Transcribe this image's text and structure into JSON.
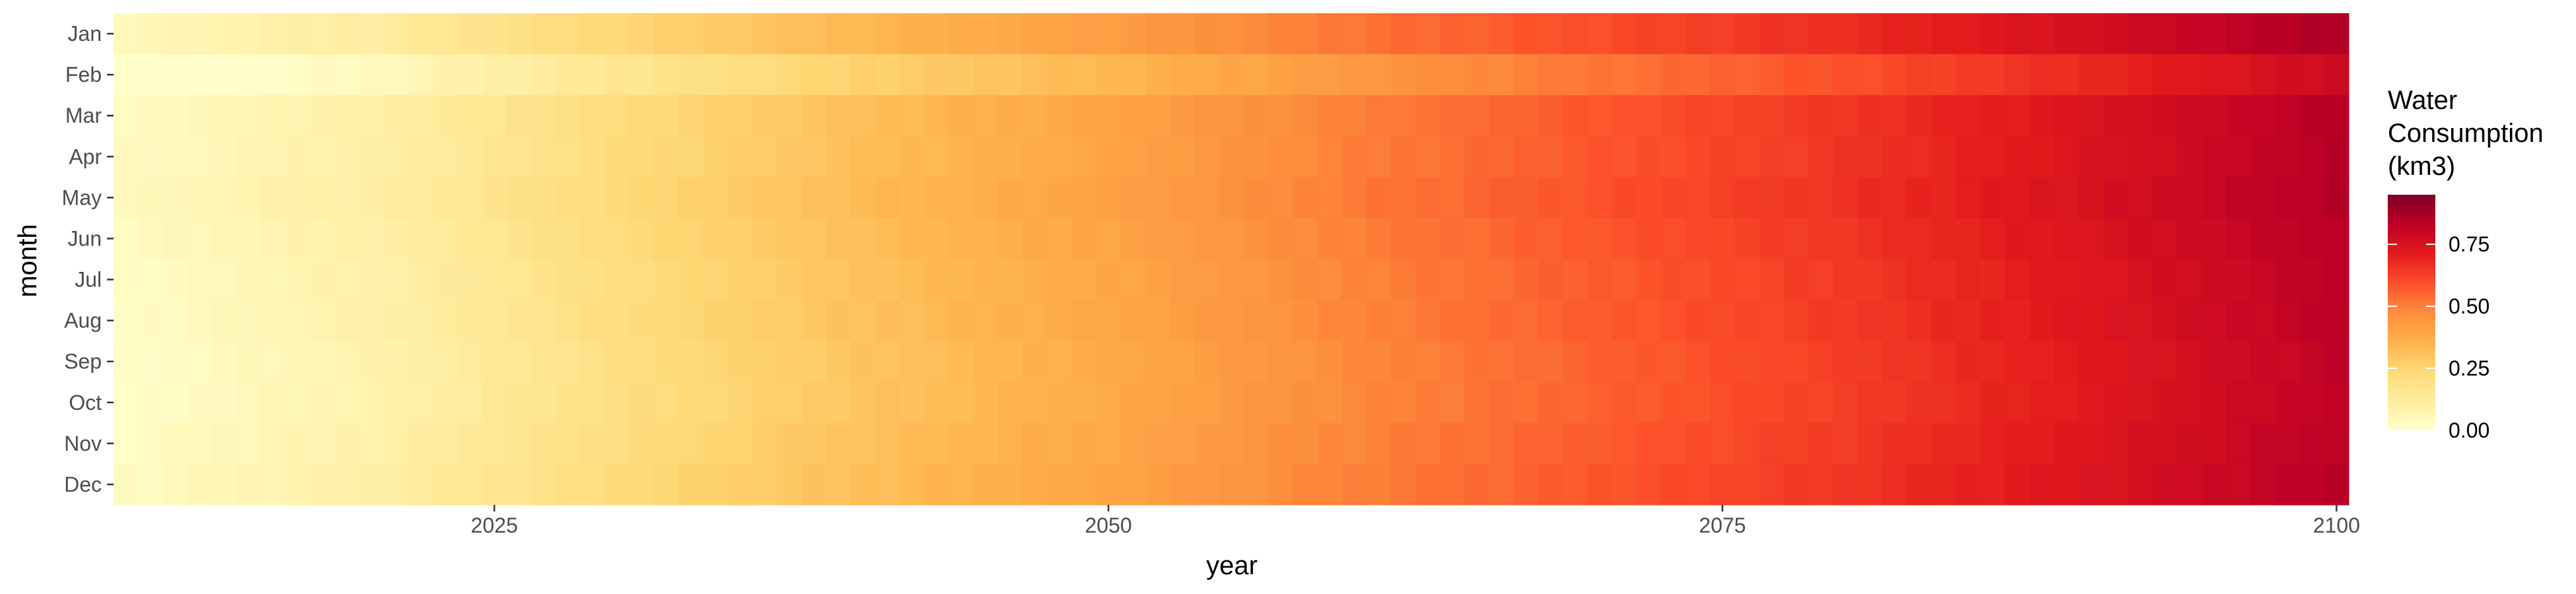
{
  "chart_data": {
    "type": "heatmap",
    "title": "",
    "xlabel": "year",
    "ylabel": "month",
    "x_start": 2010,
    "x_end": 2100,
    "x_ticks": [
      2025,
      2050,
      2075,
      2100
    ],
    "x_tick_labels": [
      "2025",
      "2050",
      "2075",
      "2100"
    ],
    "xlim": [
      2009.5,
      2100.5
    ],
    "months": [
      "Jan",
      "Feb",
      "Mar",
      "Apr",
      "May",
      "Jun",
      "Jul",
      "Aug",
      "Sep",
      "Oct",
      "Nov",
      "Dec"
    ],
    "grid": false,
    "value_model": {
      "description_points_year": [
        2010,
        2020,
        2030,
        2040,
        2050,
        2060,
        2070,
        2080,
        2090,
        2100
      ],
      "description_points_value": [
        0.03,
        0.1,
        0.22,
        0.32,
        0.4,
        0.5,
        0.58,
        0.65,
        0.74,
        0.84
      ],
      "month_offsets": [
        0.02,
        -0.06,
        0.0,
        0.0,
        0.01,
        0.0,
        -0.01,
        -0.01,
        -0.02,
        -0.02,
        -0.01,
        0.0
      ]
    },
    "legend": {
      "title_lines": [
        "Water",
        "Consumption",
        "(km3)"
      ],
      "placement": "right",
      "ticks": [
        0.0,
        0.25,
        0.5,
        0.75
      ],
      "tick_labels": [
        "0.00",
        "0.25",
        "0.50",
        "0.75"
      ],
      "range": [
        0.0,
        0.95
      ]
    },
    "colors": {
      "scale": [
        "#ffffcc",
        "#ffeda0",
        "#fed976",
        "#feb24c",
        "#fd8d3c",
        "#fc4e2a",
        "#e31a1c",
        "#bd0026",
        "#800026"
      ],
      "axis_text": "#4d4d4d",
      "axis_title": "#000000"
    }
  }
}
